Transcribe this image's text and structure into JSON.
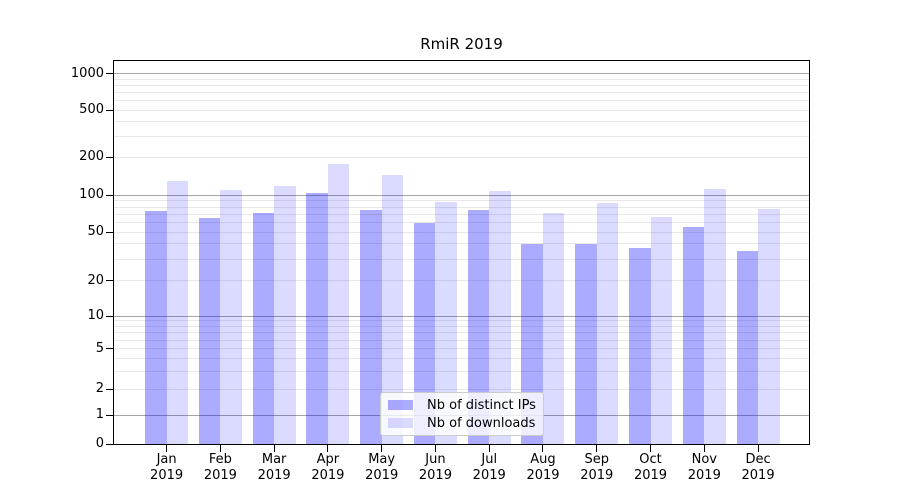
{
  "chart_data": {
    "type": "bar",
    "title": "RmiR 2019",
    "categories": [
      "Jan 2019",
      "Feb 2019",
      "Mar 2019",
      "Apr 2019",
      "May 2019",
      "Jun 2019",
      "Jul 2019",
      "Aug 2019",
      "Sep 2019",
      "Oct 2019",
      "Nov 2019",
      "Dec 2019"
    ],
    "x_tick_months": [
      "Jan",
      "Feb",
      "Mar",
      "Apr",
      "May",
      "Jun",
      "Jul",
      "Aug",
      "Sep",
      "Oct",
      "Nov",
      "Dec"
    ],
    "x_tick_year": "2019",
    "series": [
      {
        "name": "Nb of distinct IPs",
        "color": "rgba(0,0,255,0.33)",
        "values": [
          74,
          65,
          71,
          105,
          76,
          59,
          76,
          40,
          40,
          37,
          55,
          35
        ]
      },
      {
        "name": "Nb of downloads",
        "color": "rgba(0,0,255,0.14)",
        "values": [
          130,
          111,
          118,
          175,
          145,
          88,
          109,
          71,
          87,
          67,
          113,
          77
        ]
      }
    ],
    "xlabel": "",
    "ylabel": "",
    "yscale": "symlog",
    "y_ticks": [
      0,
      1,
      2,
      5,
      10,
      20,
      50,
      100,
      200,
      500,
      1000
    ],
    "ylim": [
      0,
      1280
    ],
    "grid": {
      "major_values": [
        1,
        10,
        100,
        1000
      ],
      "major_color": "#a6a6a6",
      "minor_color": "#e8e8e8",
      "minor_subs": [
        2,
        3,
        4,
        5,
        6,
        7,
        8,
        9
      ]
    },
    "legend": {
      "position": "lower center",
      "entries": [
        "Nb of distinct IPs",
        "Nb of downloads"
      ]
    }
  }
}
